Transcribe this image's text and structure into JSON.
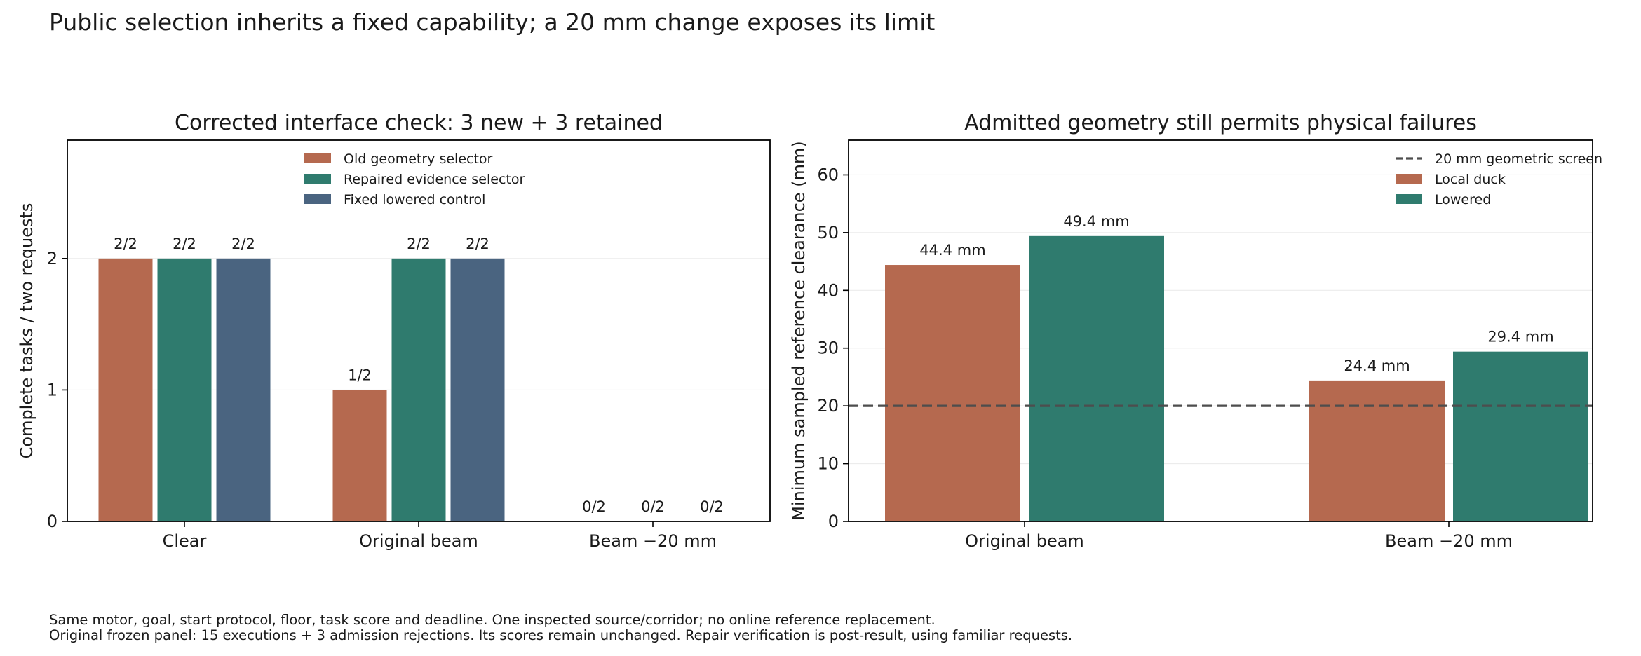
{
  "suptitle": "Public selection inherits a fixed capability; a 20 mm change exposes its limit",
  "footnotes": [
    "Same motor, goal, start protocol, floor, task score and deadline. One inspected source/corridor; no online reference replacement.",
    "Original frozen panel: 15 executions + 3 admission rejections. Its scores remain unchanged. Repair verification is post-result, using familiar requests."
  ],
  "colors": {
    "old": "#b5694f",
    "repaired": "#2f7b6e",
    "fixed": "#4a6480",
    "screen": "#4d4d4d"
  },
  "chart_data": [
    {
      "type": "bar",
      "title": "Corrected interface check: 3 new + 3 retained",
      "xlabel": "",
      "ylabel": "Complete tasks / two requests",
      "ylim": [
        0,
        2.9
      ],
      "yticks": [
        0,
        1,
        2
      ],
      "grid": true,
      "legend_position": "top-center",
      "categories": [
        "Clear",
        "Original beam",
        "Beam −20 mm"
      ],
      "series": [
        {
          "name": "Old geometry selector",
          "values": [
            2,
            1,
            0
          ],
          "labels": [
            "2/2",
            "1/2",
            "0/2"
          ],
          "color": "#b5694f"
        },
        {
          "name": "Repaired evidence selector",
          "values": [
            2,
            2,
            0
          ],
          "labels": [
            "2/2",
            "2/2",
            "0/2"
          ],
          "color": "#2f7b6e"
        },
        {
          "name": "Fixed lowered control",
          "values": [
            2,
            2,
            0
          ],
          "labels": [
            "2/2",
            "2/2",
            "0/2"
          ],
          "color": "#4a6480"
        }
      ]
    },
    {
      "type": "bar",
      "title": "Admitted geometry still permits physical failures",
      "xlabel": "",
      "ylabel": "Minimum sampled reference clearance (mm)",
      "ylim": [
        0,
        66
      ],
      "yticks": [
        0,
        10,
        20,
        30,
        40,
        50,
        60
      ],
      "grid": true,
      "legend_position": "top-right",
      "categories": [
        "Original beam",
        "Beam −20 mm"
      ],
      "reference_line": {
        "name": "20 mm geometric screen",
        "y": 20,
        "style": "dashed",
        "color": "#4d4d4d"
      },
      "series": [
        {
          "name": "Local duck",
          "values": [
            44.4,
            24.4
          ],
          "labels": [
            "44.4 mm",
            "24.4 mm"
          ],
          "color": "#b5694f"
        },
        {
          "name": "Lowered",
          "values": [
            49.4,
            29.4
          ],
          "labels": [
            "49.4 mm",
            "29.4 mm"
          ],
          "color": "#2f7b6e"
        }
      ]
    }
  ]
}
